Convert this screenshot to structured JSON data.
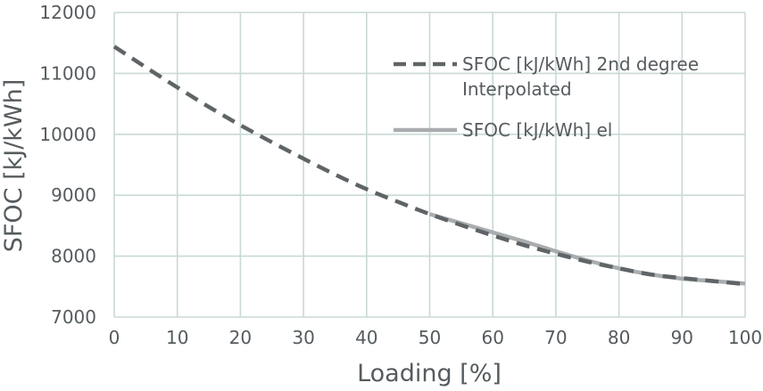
{
  "chart_data": {
    "type": "line",
    "xlabel": "Loading [%]",
    "ylabel": "SFOC [kJ/kWh]",
    "xlim": [
      0,
      100
    ],
    "ylim": [
      7000,
      12000
    ],
    "x_ticks": [
      "0",
      "10",
      "20",
      "30",
      "40",
      "50",
      "60",
      "70",
      "80",
      "90",
      "100"
    ],
    "y_ticks": [
      "7000",
      "8000",
      "9000",
      "10000",
      "11000",
      "12000"
    ],
    "grid": true,
    "legend_position": "top-right",
    "series": [
      {
        "name_line1": "SFOC [kJ/kWh] 2nd degree",
        "name_line2": "Interpolated",
        "style": "dashed",
        "color": "#5f6466",
        "x": [
          0,
          5,
          10,
          15,
          20,
          25,
          30,
          35,
          40,
          45,
          50,
          55,
          60,
          65,
          70,
          75,
          80,
          85,
          90,
          95,
          100
        ],
        "values": [
          11440,
          11100,
          10770,
          10450,
          10150,
          9870,
          9600,
          9340,
          9100,
          8890,
          8690,
          8510,
          8340,
          8180,
          8040,
          7910,
          7800,
          7700,
          7640,
          7590,
          7540
        ]
      },
      {
        "name": "SFOC [kJ/kWh] el",
        "style": "solid",
        "color": "#a9adaf",
        "x": [
          50,
          55,
          60,
          65,
          70,
          75,
          80,
          85,
          90,
          95,
          100
        ],
        "values": [
          8690,
          8540,
          8390,
          8240,
          8080,
          7930,
          7800,
          7700,
          7630,
          7590,
          7550
        ]
      }
    ]
  }
}
